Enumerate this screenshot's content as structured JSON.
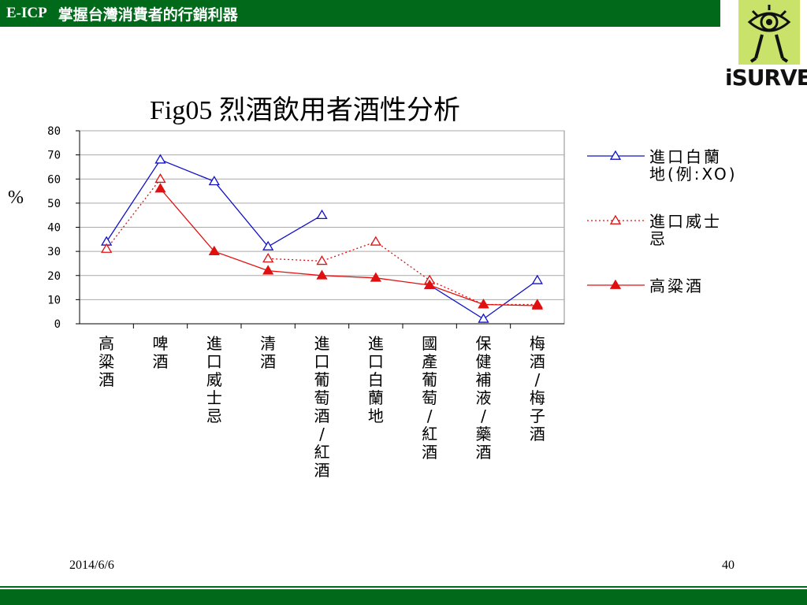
{
  "header": {
    "brand": "E-ICP",
    "title": "掌握台灣消費者的行銷利器"
  },
  "logo": {
    "text": "iSURVEY",
    "icon": "eye-figure-icon",
    "color": "#c8e26a"
  },
  "footer": {
    "date": "2014/6/6",
    "page": "40"
  },
  "colors": {
    "accent": "#006a1a",
    "series_blue": "#1010c8",
    "series_red": "#e01010"
  },
  "chart_data": {
    "type": "line",
    "title": "Fig05 烈酒飲用者酒性分析",
    "ylabel": "%",
    "ylim": [
      0,
      80
    ],
    "yticks": [
      "0",
      "10",
      "20",
      "30",
      "40",
      "50",
      "60",
      "70",
      "80"
    ],
    "grid": true,
    "legend": "right",
    "categories": [
      "高粱酒",
      "啤酒",
      "進口威士忌",
      "清酒",
      "進口葡萄酒/紅酒",
      "進口白蘭地",
      "國產葡萄/紅酒",
      "保健補液/藥酒",
      "梅酒/梅子酒"
    ],
    "series": [
      {
        "name": "進口白蘭地(例:XO)",
        "legend_lines": [
          "進口白蘭",
          "地(例:XO)"
        ],
        "style": "solid-open-triangle",
        "color": "#1010c8",
        "values": [
          34,
          68,
          59,
          32,
          45,
          null,
          16,
          2,
          18
        ]
      },
      {
        "name": "進口威士忌",
        "legend_lines": [
          "進口威士",
          "忌"
        ],
        "style": "dotted-open-triangle",
        "color": "#e01010",
        "values": [
          31,
          60,
          null,
          27,
          26,
          34,
          18,
          8,
          8
        ]
      },
      {
        "name": "高粱酒",
        "legend_lines": [
          "高粱酒"
        ],
        "style": "solid-filled-triangle",
        "color": "#e01010",
        "values": [
          null,
          56,
          30,
          22,
          20,
          19,
          16,
          8,
          7.5
        ]
      }
    ]
  }
}
